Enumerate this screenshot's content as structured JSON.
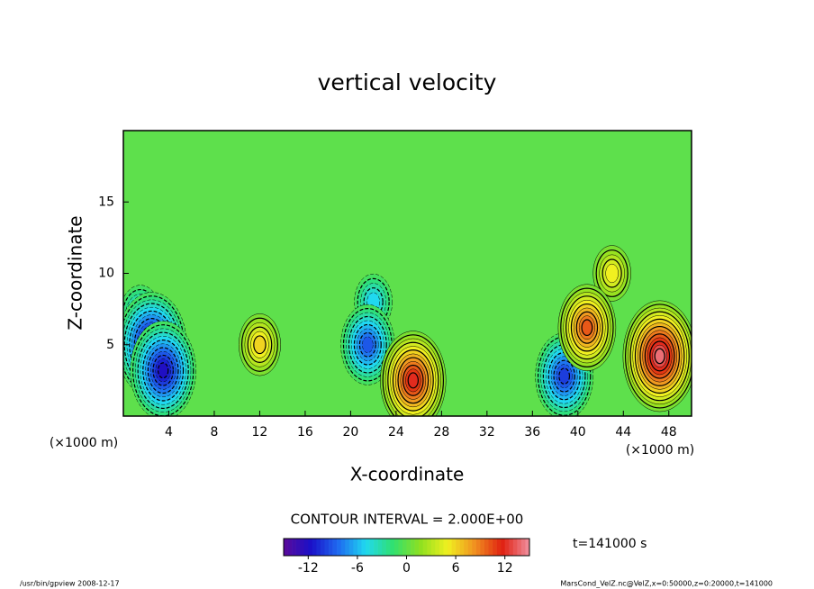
{
  "chart_data": {
    "type": "contour",
    "title": "vertical velocity",
    "x_label": "X-coordinate",
    "y_label": "Z-coordinate",
    "x_unit": "(×1000 m)",
    "y_unit": "(×1000 m)",
    "xlim": [
      0,
      50
    ],
    "xticks": [
      4,
      8,
      12,
      16,
      20,
      24,
      28,
      32,
      36,
      40,
      44,
      48
    ],
    "ylim": [
      0,
      20
    ],
    "yticks": [
      5,
      10,
      15
    ],
    "contour_interval": "CONTOUR INTERVAL = 2.000E+00",
    "time_label": "t=141000 s",
    "colorbar_lim": [
      -15,
      15
    ],
    "colorbar_ticks": [
      -12,
      -6,
      0,
      6,
      12
    ],
    "colormap": [
      "#5a0a9a",
      "#1a10c8",
      "#1e6af0",
      "#20d8f0",
      "#30e070",
      "#8ee020",
      "#f0f020",
      "#f09020",
      "#e02010",
      "#f090a0"
    ],
    "extrema": [
      {
        "x": 1.5,
        "z": 7,
        "value": -6
      },
      {
        "x": 2.5,
        "z": 5,
        "value": -13
      },
      {
        "x": 3.5,
        "z": 3.2,
        "value": -12
      },
      {
        "x": 12,
        "z": 5,
        "value": 6
      },
      {
        "x": 22,
        "z": 8,
        "value": -5
      },
      {
        "x": 21.5,
        "z": 5,
        "value": -9
      },
      {
        "x": 25.5,
        "z": 2.5,
        "value": 12
      },
      {
        "x": 38.8,
        "z": 2.8,
        "value": -10
      },
      {
        "x": 43,
        "z": 10,
        "value": 5
      },
      {
        "x": 40.8,
        "z": 6.2,
        "value": 10
      },
      {
        "x": 47.2,
        "z": 4.2,
        "value": 14
      }
    ],
    "footer_left": "/usr/bin/gpview  2008-12-17",
    "footer_right": "MarsCond_VelZ.nc@VelZ,x=0:50000,z=0:20000,t=141000"
  }
}
